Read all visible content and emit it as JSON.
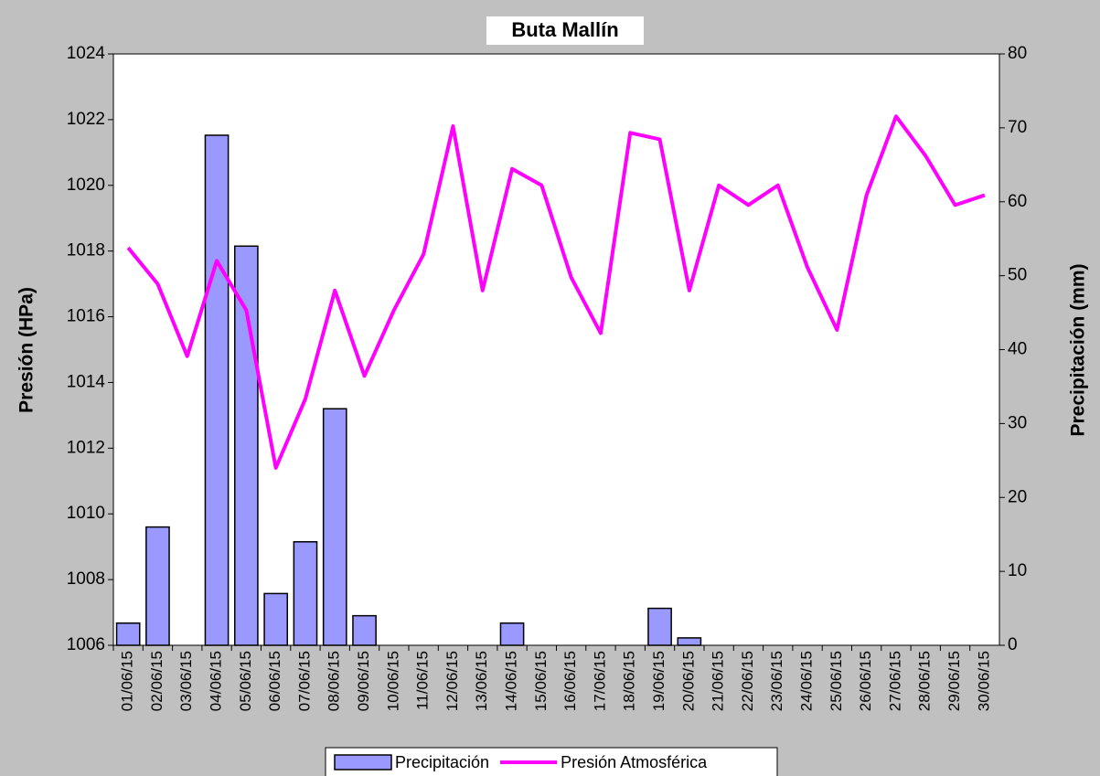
{
  "chart_data": {
    "type": "combo",
    "title": "Buta Mallín",
    "y_label": "Presión (HPa)",
    "y2_label": "Precipitación (mm)",
    "categories": [
      "01/06/15",
      "02/06/15",
      "03/06/15",
      "04/06/15",
      "05/06/15",
      "06/06/15",
      "07/06/15",
      "08/06/15",
      "09/06/15",
      "10/06/15",
      "11/06/15",
      "12/06/15",
      "13/06/15",
      "14/06/15",
      "15/06/15",
      "16/06/15",
      "17/06/15",
      "18/06/15",
      "19/06/15",
      "20/06/15",
      "21/06/15",
      "22/06/15",
      "23/06/15",
      "24/06/15",
      "25/06/15",
      "26/06/15",
      "27/06/15",
      "28/06/15",
      "29/06/15",
      "30/06/15"
    ],
    "series": [
      {
        "name": "Precipitación",
        "type": "bar",
        "axis": "y2",
        "color": "#9999ff",
        "values": [
          3,
          16,
          0,
          69,
          54,
          7,
          14,
          32,
          4,
          0,
          0,
          0,
          0,
          3,
          0,
          0,
          0,
          0,
          5,
          1,
          0,
          0,
          0,
          0,
          0,
          0,
          0,
          0,
          0,
          0
        ]
      },
      {
        "name": "Presión Atmosférica",
        "type": "line",
        "axis": "y",
        "color": "#ff00ff",
        "values": [
          1018.1,
          1017.0,
          1014.8,
          1017.7,
          1016.2,
          1011.4,
          1013.5,
          1016.8,
          1014.2,
          1016.2,
          1017.9,
          1021.8,
          1016.8,
          1020.5,
          1020.0,
          1017.2,
          1015.5,
          1021.6,
          1021.4,
          1016.8,
          1020.0,
          1019.4,
          1020.0,
          1017.5,
          1015.6,
          1019.7,
          1022.1,
          1020.9,
          1019.4,
          1019.7
        ]
      }
    ],
    "ylim": [
      1006,
      1024
    ],
    "yticks": [
      1006,
      1008,
      1010,
      1012,
      1014,
      1016,
      1018,
      1020,
      1022,
      1024
    ],
    "y2lim": [
      0,
      80
    ],
    "y2ticks": [
      0,
      10,
      20,
      30,
      40,
      50,
      60,
      70,
      80
    ],
    "legend": "bottom"
  }
}
